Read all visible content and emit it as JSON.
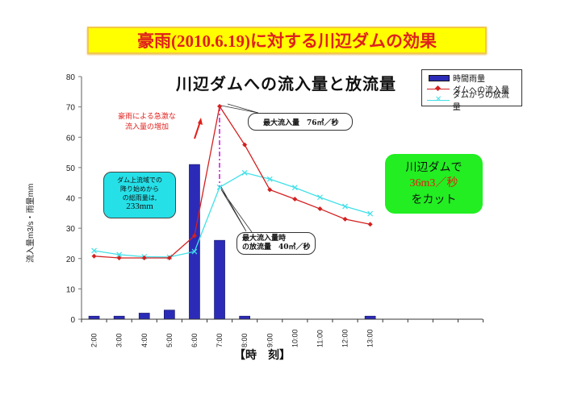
{
  "banner": {
    "title": "豪雨(2010.6.19)に対する川辺ダムの効果"
  },
  "chart_title": "川辺ダムへの流入量と放流量",
  "legend": {
    "items": [
      {
        "label": "時間雨量",
        "color": "#2b2bb8"
      },
      {
        "label": "ダムへの流入量",
        "color": "#d42020"
      },
      {
        "label": "ダムからの放流量",
        "color": "#40e0e8"
      }
    ]
  },
  "annotations": {
    "surge_line1": "豪雨による急激な",
    "surge_line2": "流入量の増加",
    "peak_inflow": "最大流入量　76㎥／秒",
    "peak_outflow_line1": "最大流入量時",
    "peak_outflow_line2": "の放流量　40㎥／秒",
    "rain_line1": "ダム上流域での",
    "rain_line2": "降り始めから",
    "rain_line3": "の総雨量は,",
    "rain_total": "233mm",
    "cut_line1": "川辺ダムで",
    "cut_line2": "36m3／秒",
    "cut_line3": "をカット"
  },
  "axes": {
    "y_label": "流入量m3/s・雨量mm",
    "x_label": "【時　刻】"
  },
  "chart_data": {
    "type": "bar+line",
    "title": "川辺ダムへの流入量と放流量",
    "xlabel": "【時　刻】",
    "ylabel": "流入量m3/s・雨量mm",
    "ylim": [
      0,
      80
    ],
    "yticks": [
      0,
      10,
      20,
      30,
      40,
      50,
      60,
      70,
      80
    ],
    "categories": [
      "2:00",
      "3:00",
      "4:00",
      "5:00",
      "6:00",
      "7:00",
      "8:00",
      "9:00",
      "10:00",
      "11:00",
      "12:00",
      "13:00"
    ],
    "series": [
      {
        "name": "時間雨量",
        "type": "bar",
        "color": "#2b2bb8",
        "values": [
          1,
          1,
          2,
          3,
          51,
          26,
          1,
          0,
          0,
          0,
          0,
          1
        ]
      },
      {
        "name": "ダムへの流入量",
        "type": "line",
        "marker": "diamond",
        "color": "#d42020",
        "values": [
          20.8,
          20.2,
          20.2,
          20.2,
          27.5,
          70.2,
          57.5,
          42.7,
          39.6,
          36.4,
          33.0,
          31.3
        ]
      },
      {
        "name": "ダムからの放流量",
        "type": "line",
        "marker": "x",
        "color": "#40e0e8",
        "values": [
          22.6,
          21.3,
          20.6,
          20.5,
          22.3,
          43.5,
          48.3,
          46.2,
          43.4,
          40.2,
          37.2,
          34.8
        ]
      }
    ],
    "legend_position": "top-right",
    "grid": false
  }
}
